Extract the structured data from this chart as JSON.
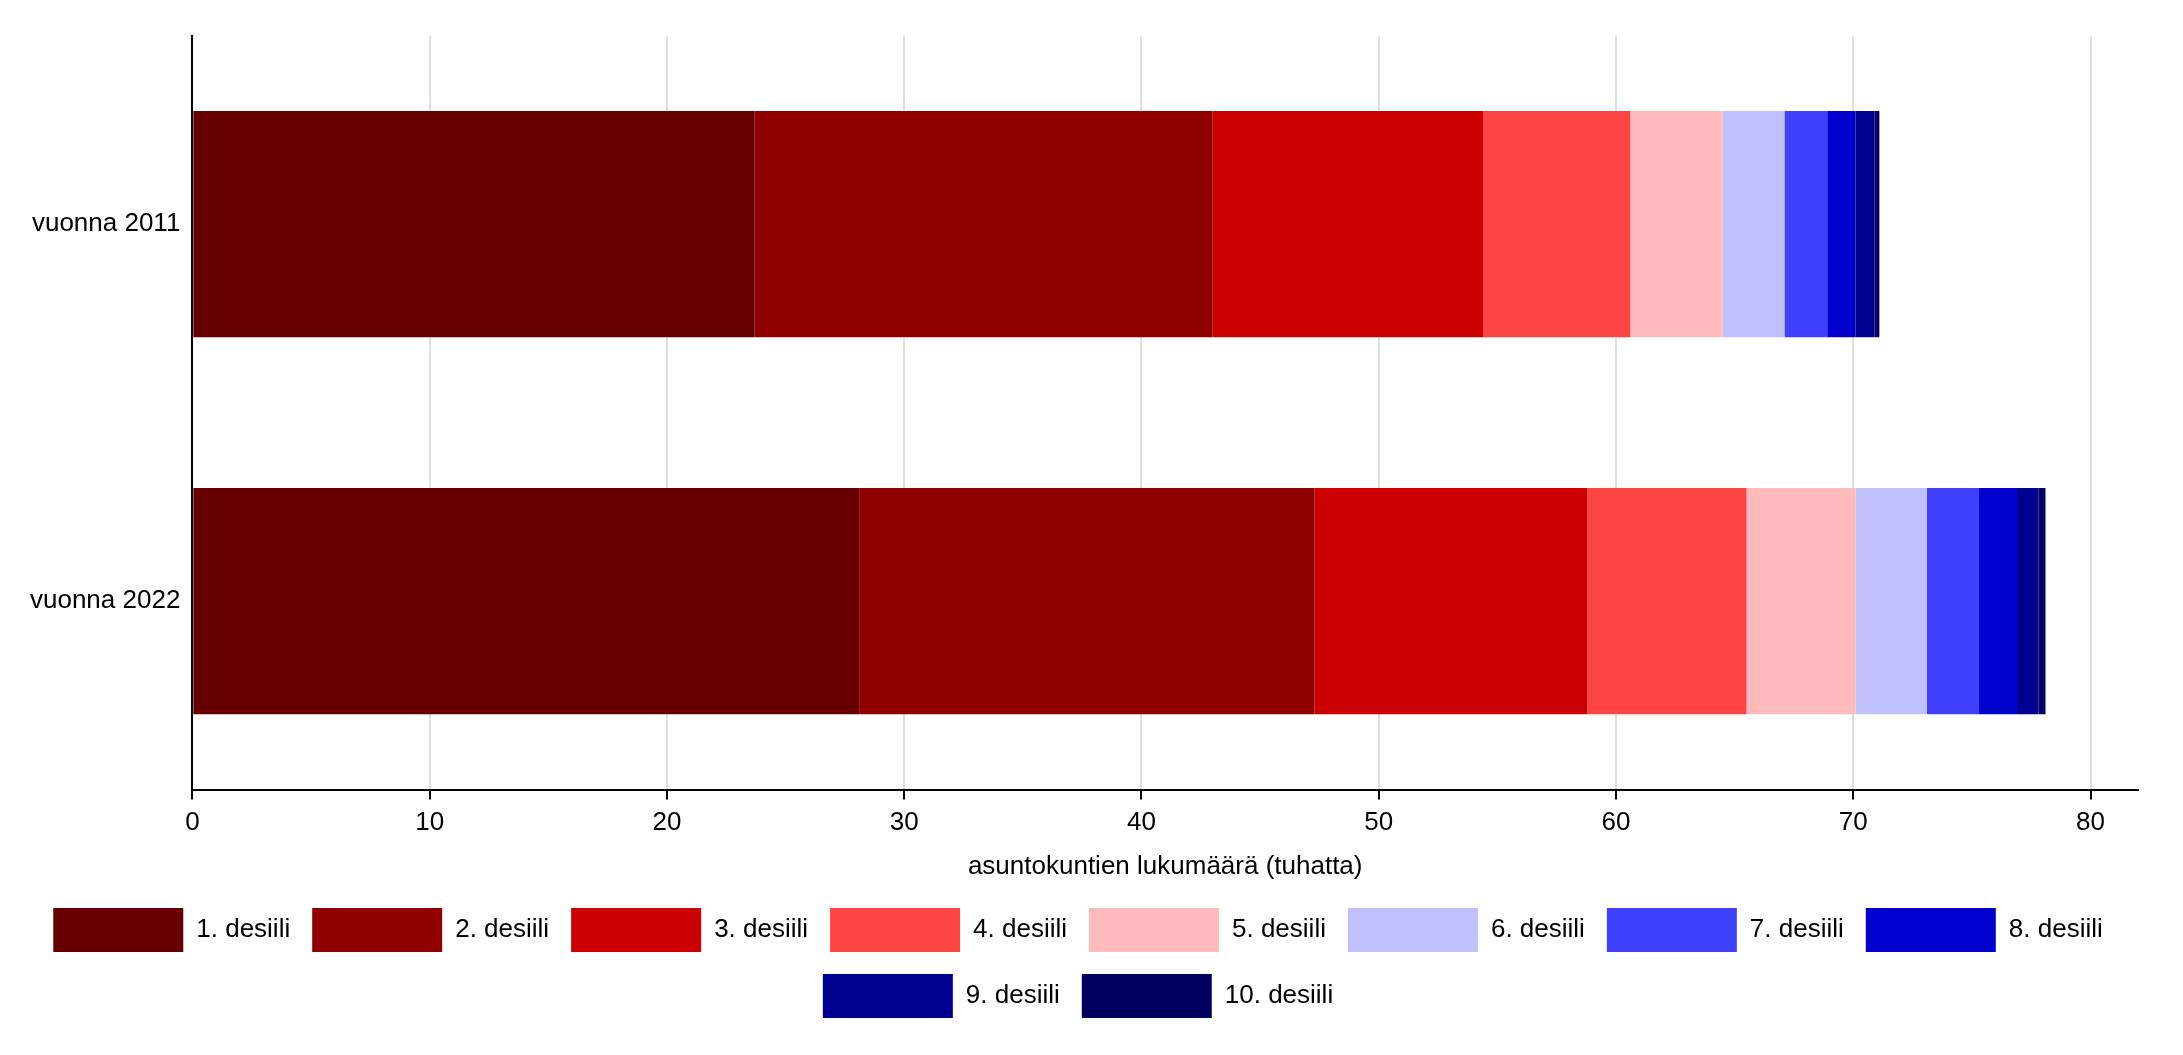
{
  "chart_data": {
    "type": "bar",
    "orientation": "horizontal",
    "stacked": true,
    "xlabel": "asuntokuntien lukumäärä (tuhatta)",
    "categories": [
      "vuonna 2011",
      "vuonna 2022"
    ],
    "xlim": [
      0,
      82
    ],
    "xticks": [
      0,
      10,
      20,
      30,
      40,
      50,
      60,
      70,
      80
    ],
    "grid": "x",
    "legend": "bottom",
    "series": [
      {
        "name": "1. desiili",
        "color": "#660000",
        "values": [
          23.7,
          28.1
        ]
      },
      {
        "name": "2. desiili",
        "color": "#900000",
        "values": [
          19.3,
          19.2
        ]
      },
      {
        "name": "3. desiili",
        "color": "#cc0000",
        "values": [
          11.4,
          11.5
        ]
      },
      {
        "name": "4. desiili",
        "color": "#ff4444",
        "values": [
          6.2,
          6.7
        ]
      },
      {
        "name": "5. desiili",
        "color": "#ffbbbb",
        "values": [
          3.9,
          4.6
        ]
      },
      {
        "name": "6. desiili",
        "color": "#c0c0ff",
        "values": [
          2.6,
          3.0
        ]
      },
      {
        "name": "7. desiili",
        "color": "#4040ff",
        "values": [
          1.8,
          2.2
        ]
      },
      {
        "name": "8. desiili",
        "color": "#0000cc",
        "values": [
          1.2,
          1.6
        ]
      },
      {
        "name": "9. desiili",
        "color": "#000090",
        "values": [
          0.8,
          0.9
        ]
      },
      {
        "name": "10. desiili",
        "color": "#000060",
        "values": [
          0.2,
          0.3
        ]
      }
    ]
  }
}
